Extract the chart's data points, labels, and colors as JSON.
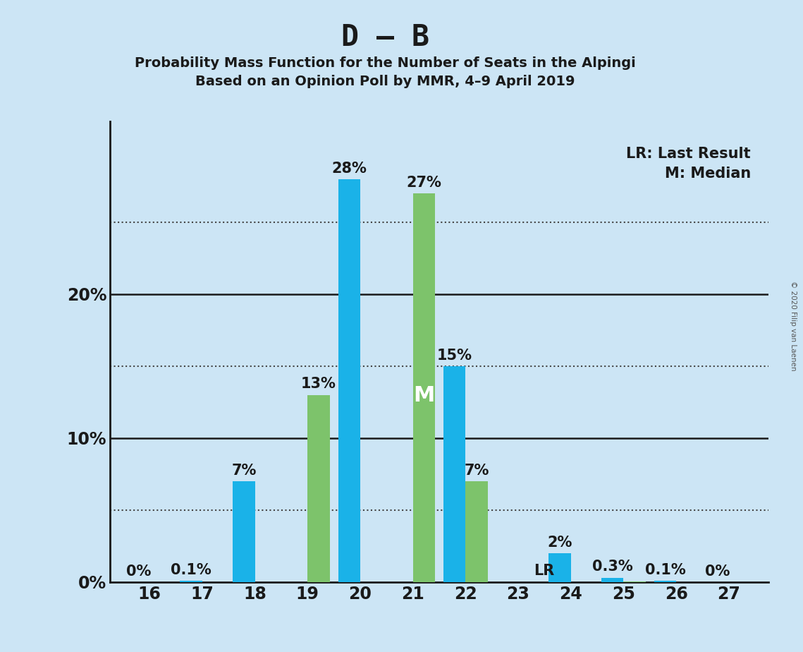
{
  "title": "D – B",
  "subtitle1": "Probability Mass Function for the Number of Seats in the Alpingi",
  "subtitle2": "Based on an Opinion Poll by MMR, 4–9 April 2019",
  "copyright": "© 2020 Filip van Laenen",
  "seats": [
    16,
    17,
    18,
    19,
    20,
    21,
    22,
    23,
    24,
    25,
    26,
    27
  ],
  "blue_values": [
    0.0,
    0.1,
    7.0,
    0.0,
    28.0,
    0.0,
    15.0,
    0.0,
    2.0,
    0.3,
    0.1,
    0.0
  ],
  "green_values": [
    0.0,
    0.0,
    0.0,
    13.0,
    0.0,
    27.0,
    7.0,
    0.0,
    0.0,
    0.05,
    0.0,
    0.0
  ],
  "blue_color": "#1ab2e8",
  "green_color": "#7dc36b",
  "background_color": "#cce5f5",
  "bar_annotations_blue": [
    "0%",
    "0.1%",
    "7%",
    "",
    "28%",
    "",
    "15%",
    "",
    "2%",
    "0.3%",
    "0.1%",
    "0%"
  ],
  "bar_annotations_green": [
    "",
    "",
    "",
    "13%",
    "",
    "27%",
    "7%",
    "",
    "",
    "",
    "",
    ""
  ],
  "median_seat": 21,
  "lr_seat": 23,
  "lr_label_seat": 23,
  "yticks": [
    0,
    10,
    20
  ],
  "ytick_labels": [
    "0%",
    "10%",
    "20%"
  ],
  "dotted_lines": [
    5.0,
    15.0,
    25.0
  ],
  "solid_lines": [
    10.0,
    20.0
  ],
  "ylim": [
    0,
    32
  ],
  "legend_text1": "LR: Last Result",
  "legend_text2": "M: Median",
  "title_fontsize": 30,
  "subtitle_fontsize": 14,
  "annot_fontsize": 15,
  "axis_fontsize": 17,
  "legend_fontsize": 15,
  "bar_width": 0.42
}
